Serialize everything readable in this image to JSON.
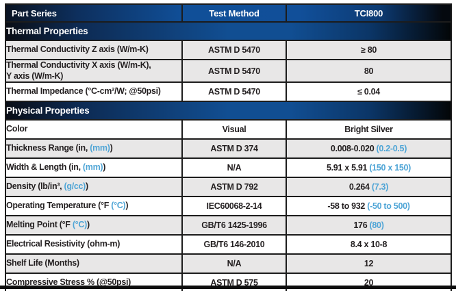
{
  "colors": {
    "header_blue": "#104f98",
    "dark_navy": "#0d2a52",
    "light_blue_text": "#4fa5d6",
    "row_gray": "#e8e7e7",
    "text_dark": "#231f20"
  },
  "header": {
    "part_series": "Part Series",
    "test_method": "Test Method",
    "product": "TCI800"
  },
  "sections": [
    {
      "title": "Thermal Properties",
      "rows": [
        {
          "label": "Thermal Conductivity Z axis (W/m-K)",
          "method": "ASTM D 5470",
          "value": "≥ 80"
        },
        {
          "label": "Thermal Conductivity X axis (W/m-K),\nY axis (W/m-K)",
          "method": "ASTM D 5470",
          "value": "80"
        },
        {
          "label": "Thermal Impedance (°C-cm²/W; @50psi)",
          "method": "ASTM D 5470",
          "value": "≤ 0.04"
        }
      ]
    },
    {
      "title": "Physical Properties",
      "rows": [
        {
          "label": "Color",
          "method": "Visual",
          "value": "Bright Silver"
        },
        {
          "label": "Thickness Range (in, ",
          "label_blue": "(mm)",
          "label_suffix": ")",
          "method": "ASTM D 374",
          "value": "0.008-0.020 ",
          "value_blue": "(0.2-0.5)"
        },
        {
          "label": "Width & Length (in, ",
          "label_blue": "(mm)",
          "label_suffix": ")",
          "method": "N/A",
          "value": "5.91 x 5.91 ",
          "value_blue": "(150 x 150)"
        },
        {
          "label": "Density (lb/in³, ",
          "label_blue": "(g/cc)",
          "label_suffix": ")",
          "method": "ASTM D 792",
          "value": "0.264 ",
          "value_blue": "(7.3)"
        },
        {
          "label": "Operating Temperature (°F ",
          "label_blue": "(°C)",
          "label_suffix": ")",
          "method": "IEC60068-2-14",
          "value": "-58 to 932 ",
          "value_blue": "(-50 to 500)"
        },
        {
          "label": "Melting Point (°F ",
          "label_blue": "(°C)",
          "label_suffix": ")",
          "method": "GB/T6 1425-1996",
          "value": "176 ",
          "value_blue": "(80)"
        },
        {
          "label": "Electrical Resistivity (ohm-m)",
          "method": "GB/T6 146-2010",
          "value": "8.4 x 10-8"
        },
        {
          "label": "Shelf Life (Months)",
          "method": "N/A",
          "value": "12"
        },
        {
          "label": "Compressive Stress % (@50psi)",
          "method": "ASTM D 575",
          "value": "20"
        }
      ]
    }
  ]
}
